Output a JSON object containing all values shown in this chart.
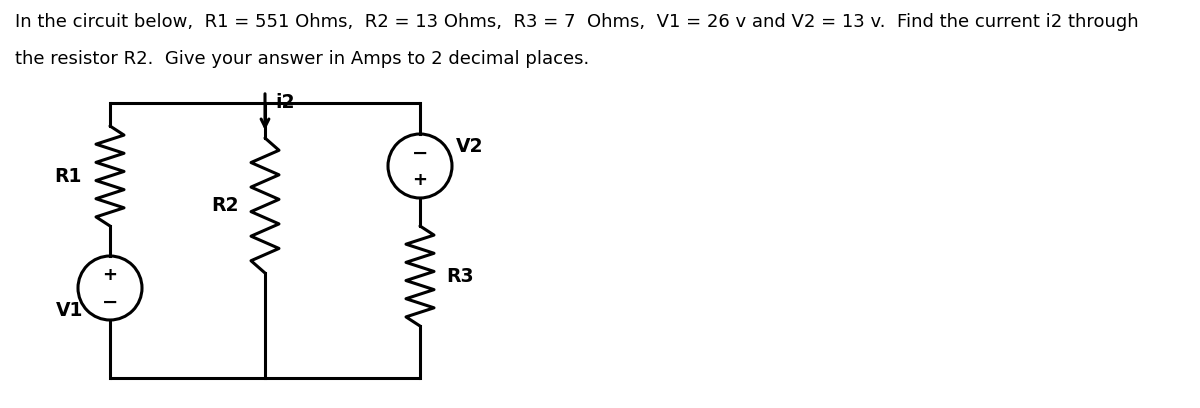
{
  "title_line1": "In the circuit below,  R1 = 551 Ohms,  R2 = 13 Ohms,  R3 = 7  Ohms,  V1 = 26 v and V2 = 13 v.  Find the current i2 through",
  "title_line2": "the resistor R2.  Give your answer in Amps to 2 decimal places.",
  "bg_color": "#ffffff",
  "line_color": "#000000",
  "font_size_text": 13.0,
  "font_size_labels": 13.5,
  "font_size_symbols": 12
}
